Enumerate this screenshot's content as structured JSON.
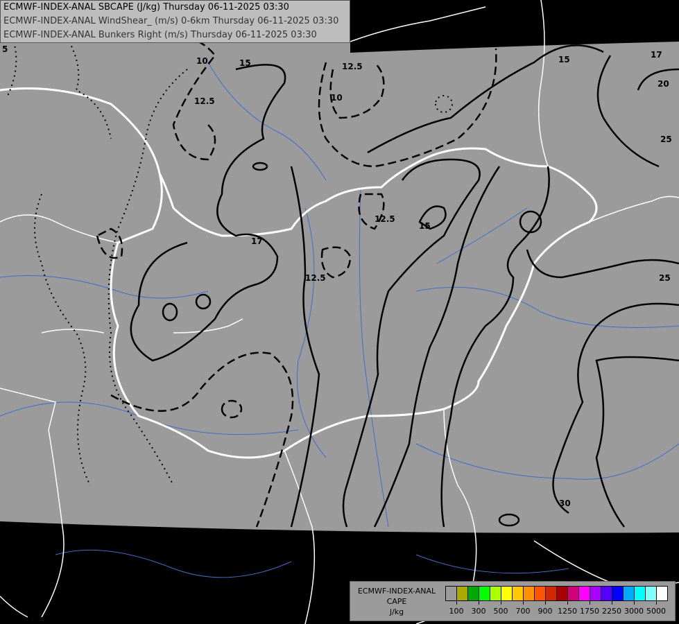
{
  "header": {
    "lines": [
      "ECMWF-INDEX-ANAL SBCAPE (J/kg) Thursday 06-11-2025 03:30",
      "ECMWF-INDEX-ANAL WindShear_ (m/s) 0-6km Thursday 06-11-2025 03:30",
      "ECMWF-INDEX-ANAL Bunkers Right (m/s) Thursday 06-11-2025 03:30"
    ]
  },
  "legend": {
    "title_lines": [
      "ECMWF-INDEX-ANAL",
      "CAPE",
      "J/kg"
    ],
    "colors": [
      "#9b9b9b",
      "#aaaa00",
      "#00aa00",
      "#00ff00",
      "#aaff00",
      "#ffff00",
      "#ffc800",
      "#ff9000",
      "#ff5500",
      "#d22800",
      "#aa0000",
      "#d2007a",
      "#ff00ff",
      "#aa00ff",
      "#5500ff",
      "#0000ff",
      "#00aaff",
      "#00ffff",
      "#80ffff",
      "#ffffff"
    ],
    "tick_labels": [
      "100",
      "300",
      "500",
      "700",
      "900",
      "1250",
      "1750",
      "2250",
      "3000",
      "5000"
    ]
  },
  "map": {
    "domain_color": "#9b9b9b",
    "outside_color": "#000000",
    "border_color": "#ffffff",
    "river_color": "#3a6fd0",
    "contour_labels": [
      "5",
      "10",
      "12.5",
      "15",
      "12.5",
      "10",
      "15",
      "17",
      "20",
      "25",
      "12.5",
      "15",
      "17",
      "12.5",
      "25",
      "30"
    ]
  }
}
